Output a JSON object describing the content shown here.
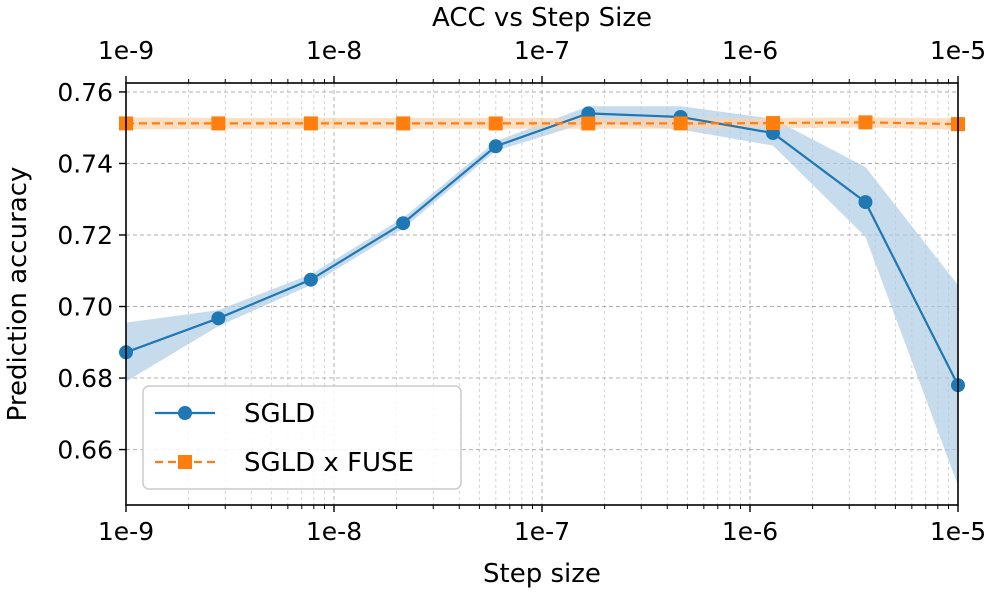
{
  "chart_data": {
    "type": "line",
    "title": "ACC vs Step Size",
    "xlabel": "Step size",
    "ylabel": "Prediction accuracy",
    "xscale": "log",
    "xlim": [
      1e-09,
      1e-05
    ],
    "ylim": [
      0.6445,
      0.7625
    ],
    "grid": true,
    "legend_position": "lower-left",
    "x_tick_labels": [
      "1e-9",
      "1e-8",
      "1e-7",
      "1e-6",
      "1e-5"
    ],
    "x_tick_values": [
      1e-09,
      1e-08,
      1e-07,
      1e-06,
      1e-05
    ],
    "top_tick_labels": [
      "1e-9",
      "1e-8",
      "1e-7",
      "1e-6",
      "1e-5"
    ],
    "y_tick_labels": [
      "0.66",
      "0.68",
      "0.70",
      "0.72",
      "0.74",
      "0.76"
    ],
    "y_tick_values": [
      0.66,
      0.68,
      0.7,
      0.72,
      0.74,
      0.76
    ],
    "x": [
      1e-09,
      2.78e-09,
      7.74e-09,
      2.15e-08,
      5.99e-08,
      1.67e-07,
      4.64e-07,
      1.29e-06,
      3.59e-06,
      1e-05
    ],
    "series": [
      {
        "name": "SGLD",
        "color": "#1f77b4",
        "band_color": "#aecde6",
        "marker": "circle",
        "linestyle": "solid",
        "values": [
          0.6872,
          0.6967,
          0.7075,
          0.7233,
          0.7448,
          0.754,
          0.753,
          0.7485,
          0.7292,
          0.678
        ],
        "lower": [
          0.679,
          0.6945,
          0.706,
          0.7218,
          0.7435,
          0.7515,
          0.7495,
          0.745,
          0.7195,
          0.65
        ],
        "upper": [
          0.6955,
          0.699,
          0.709,
          0.7248,
          0.7462,
          0.756,
          0.756,
          0.7525,
          0.739,
          0.706
        ]
      },
      {
        "name": "SGLD x FUSE",
        "color": "#ff7f0e",
        "band_color": "#ffd0a8",
        "marker": "square",
        "linestyle": "dashed",
        "values": [
          0.7512,
          0.7512,
          0.7512,
          0.7512,
          0.7512,
          0.7512,
          0.7512,
          0.7513,
          0.7515,
          0.751
        ],
        "lower": [
          0.7495,
          0.7497,
          0.7497,
          0.7497,
          0.7497,
          0.7497,
          0.7497,
          0.7499,
          0.7501,
          0.7494
        ],
        "upper": [
          0.7529,
          0.7527,
          0.7527,
          0.7527,
          0.7527,
          0.7527,
          0.7527,
          0.7527,
          0.7529,
          0.7526
        ]
      }
    ]
  }
}
